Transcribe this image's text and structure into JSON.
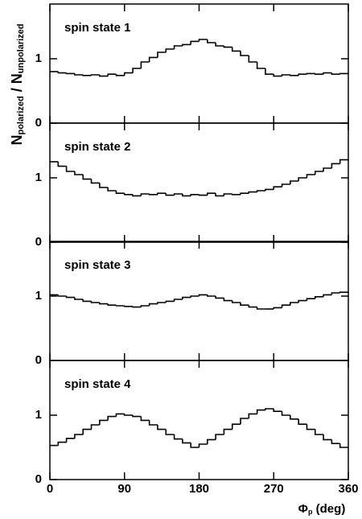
{
  "ylabel": {
    "main1": "N",
    "sub1": "polarized",
    "sep": " / ",
    "main2": "N",
    "sub2": "unpolarized"
  },
  "xlabel": {
    "main": "Φ",
    "sub": "p",
    "unit": " (deg)"
  },
  "chart_data": [
    {
      "type": "histogram",
      "title": "spin state 1",
      "bins": [
        0,
        10,
        20,
        30,
        40,
        50,
        60,
        70,
        80,
        90,
        100,
        110,
        120,
        130,
        140,
        150,
        160,
        170,
        180,
        190,
        200,
        210,
        220,
        230,
        240,
        250,
        260,
        270,
        280,
        290,
        300,
        310,
        320,
        330,
        340,
        350,
        360
      ],
      "values": [
        0.8,
        0.78,
        0.77,
        0.75,
        0.74,
        0.75,
        0.73,
        0.76,
        0.74,
        0.78,
        0.85,
        0.95,
        1.02,
        1.1,
        1.15,
        1.2,
        1.22,
        1.27,
        1.3,
        1.25,
        1.2,
        1.18,
        1.12,
        1.05,
        0.95,
        0.85,
        0.76,
        0.73,
        0.75,
        0.74,
        0.76,
        0.77,
        0.76,
        0.78,
        0.76,
        0.77
      ],
      "color": "#000000",
      "xlim": [
        0,
        360
      ],
      "ylim": [
        0,
        1.85
      ],
      "yticks": [
        0,
        1
      ]
    },
    {
      "type": "histogram",
      "title": "spin state 2",
      "bins": [
        0,
        10,
        20,
        30,
        40,
        50,
        60,
        70,
        80,
        90,
        100,
        110,
        120,
        130,
        140,
        150,
        160,
        170,
        180,
        190,
        200,
        210,
        220,
        230,
        240,
        250,
        260,
        270,
        280,
        290,
        300,
        310,
        320,
        330,
        340,
        350,
        360
      ],
      "values": [
        1.25,
        1.18,
        1.1,
        1.05,
        0.98,
        0.92,
        0.85,
        0.8,
        0.76,
        0.74,
        0.72,
        0.75,
        0.74,
        0.76,
        0.73,
        0.75,
        0.72,
        0.74,
        0.73,
        0.76,
        0.72,
        0.75,
        0.74,
        0.76,
        0.78,
        0.8,
        0.82,
        0.86,
        0.9,
        0.95,
        1.0,
        1.05,
        1.1,
        1.15,
        1.22,
        1.28
      ],
      "color": "#000000",
      "xlim": [
        0,
        360
      ],
      "ylim": [
        0,
        1.85
      ],
      "yticks": [
        0,
        1
      ]
    },
    {
      "type": "histogram",
      "title": "spin state 3",
      "bins": [
        0,
        10,
        20,
        30,
        40,
        50,
        60,
        70,
        80,
        90,
        100,
        110,
        120,
        130,
        140,
        150,
        160,
        170,
        180,
        190,
        200,
        210,
        220,
        230,
        240,
        250,
        260,
        270,
        280,
        290,
        300,
        310,
        320,
        330,
        340,
        350,
        360
      ],
      "values": [
        1.02,
        1.0,
        0.98,
        0.95,
        0.92,
        0.9,
        0.88,
        0.86,
        0.85,
        0.84,
        0.83,
        0.85,
        0.88,
        0.9,
        0.92,
        0.95,
        0.98,
        1.0,
        1.02,
        1.0,
        0.97,
        0.93,
        0.9,
        0.86,
        0.83,
        0.8,
        0.8,
        0.82,
        0.86,
        0.9,
        0.93,
        0.96,
        0.99,
        1.02,
        1.05,
        1.06
      ],
      "color": "#000000",
      "xlim": [
        0,
        360
      ],
      "ylim": [
        0,
        1.85
      ],
      "yticks": [
        0,
        1
      ]
    },
    {
      "type": "histogram",
      "title": "spin state 4",
      "bins": [
        0,
        10,
        20,
        30,
        40,
        50,
        60,
        70,
        80,
        90,
        100,
        110,
        120,
        130,
        140,
        150,
        160,
        170,
        180,
        190,
        200,
        210,
        220,
        230,
        240,
        250,
        260,
        270,
        280,
        290,
        300,
        310,
        320,
        330,
        340,
        350,
        360
      ],
      "values": [
        0.53,
        0.58,
        0.64,
        0.7,
        0.78,
        0.85,
        0.92,
        0.98,
        1.02,
        1.0,
        0.98,
        0.92,
        0.85,
        0.78,
        0.7,
        0.63,
        0.57,
        0.5,
        0.55,
        0.62,
        0.7,
        0.78,
        0.86,
        0.95,
        1.02,
        1.08,
        1.1,
        1.06,
        1.0,
        0.94,
        0.86,
        0.78,
        0.7,
        0.62,
        0.56,
        0.5
      ],
      "color": "#000000",
      "xlim": [
        0,
        360
      ],
      "ylim": [
        0,
        1.85
      ],
      "yticks": [
        0,
        1
      ],
      "xticks": [
        0,
        90,
        180,
        270,
        360
      ]
    }
  ]
}
